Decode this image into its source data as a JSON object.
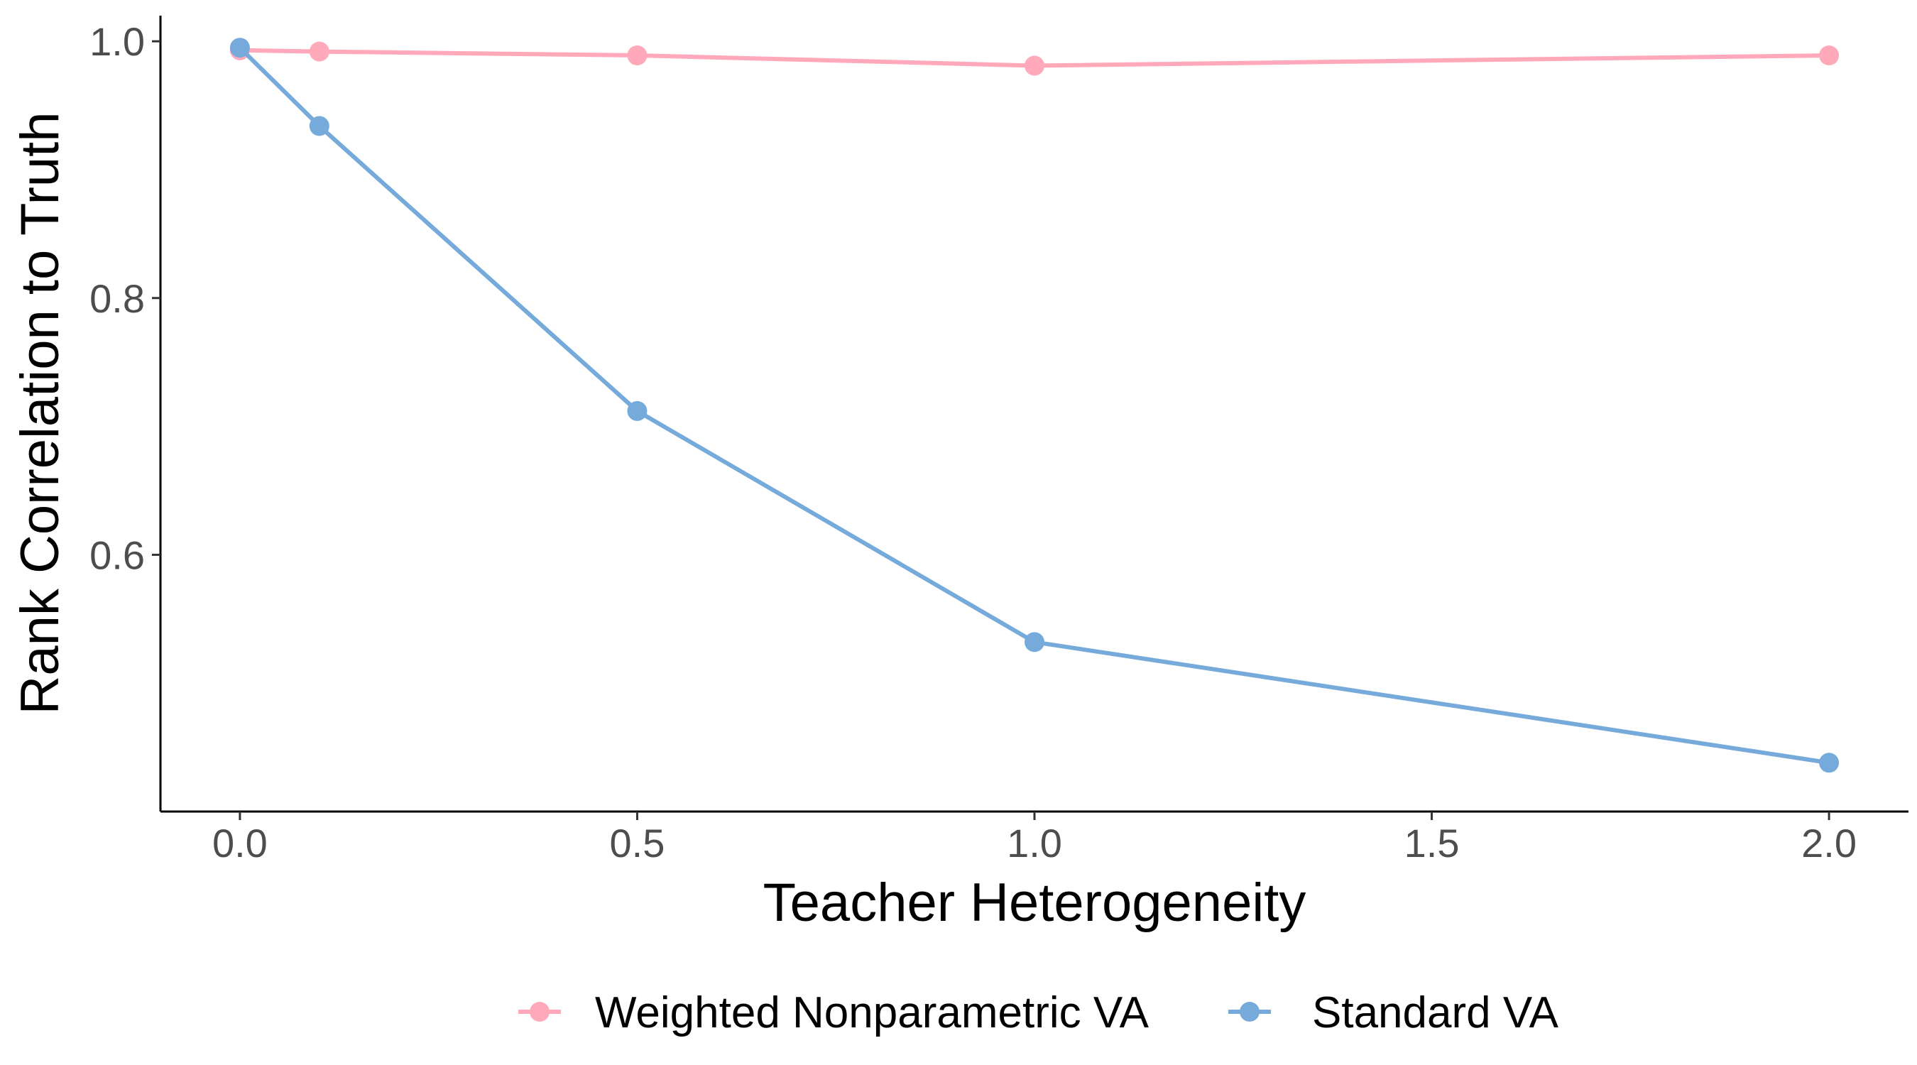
{
  "chart_data": {
    "type": "line",
    "xlabel": "Teacher Heterogeneity",
    "ylabel": "Rank Correlation to Truth",
    "xlim": [
      -0.1,
      2.1
    ],
    "ylim": [
      0.4,
      1.02
    ],
    "xticks": [
      0.0,
      0.5,
      1.0,
      1.5,
      2.0
    ],
    "xtick_labels": [
      "0.0",
      "0.5",
      "1.0",
      "1.5",
      "2.0"
    ],
    "yticks": [
      0.6,
      0.8,
      1.0
    ],
    "ytick_labels": [
      "0.6",
      "0.8",
      "1.0"
    ],
    "grid": false,
    "legend_position": "bottom",
    "series": [
      {
        "name": "Weighted Nonparametric VA",
        "color": "#FFA9BA",
        "x": [
          0.0,
          0.1,
          0.5,
          1.0,
          2.0
        ],
        "y": [
          0.993,
          0.992,
          0.989,
          0.981,
          0.989
        ]
      },
      {
        "name": "Standard VA",
        "color": "#75AADB",
        "x": [
          0.0,
          0.1,
          0.5,
          1.0,
          2.0
        ],
        "y": [
          0.995,
          0.934,
          0.712,
          0.532,
          0.438
        ]
      }
    ]
  }
}
